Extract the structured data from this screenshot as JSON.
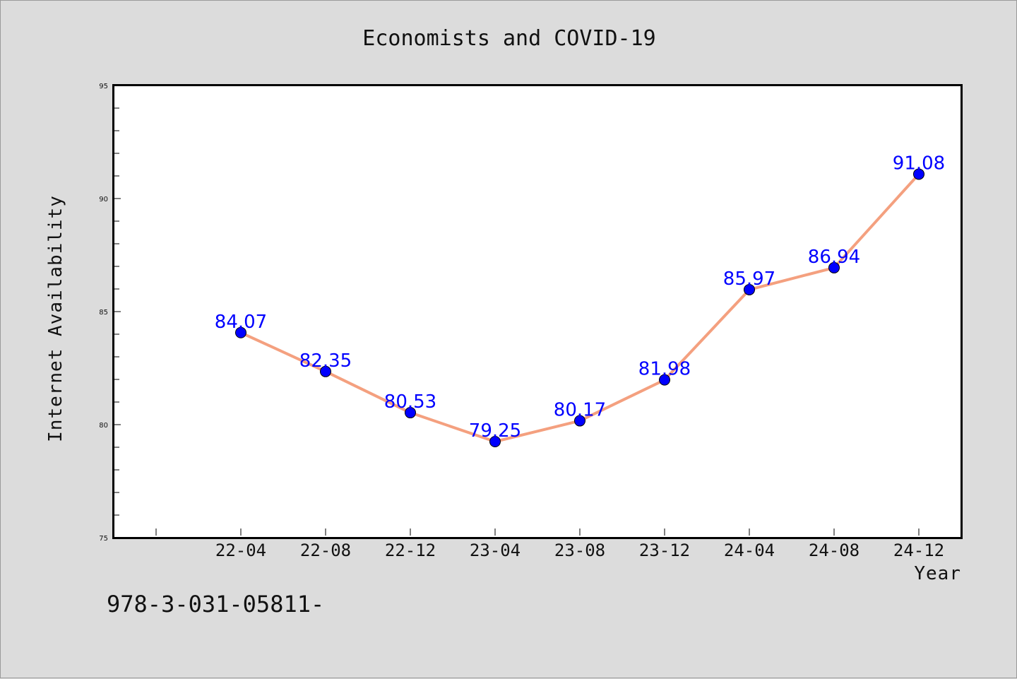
{
  "chart_data": {
    "type": "line",
    "title": "Economists and COVID-19",
    "xlabel": "Year",
    "ylabel": "Internet Availability",
    "categories": [
      "22-04",
      "22-08",
      "22-12",
      "23-04",
      "23-08",
      "23-12",
      "24-04",
      "24-08",
      "24-12"
    ],
    "series": [
      {
        "values": [
          84.07,
          82.35,
          80.53,
          79.25,
          80.17,
          81.98,
          85.97,
          86.94,
          91.08
        ]
      }
    ],
    "data_labels": [
      "84.07",
      "82.35",
      "80.53",
      "79.25",
      "80.17",
      "81.98",
      "85.97",
      "86.94",
      "91.08"
    ],
    "ylim": [
      75,
      95
    ],
    "y_ticks": [
      "75",
      "80",
      "85",
      "90",
      "95"
    ],
    "grid": false,
    "colors": {
      "line": "#f4a07f",
      "marker": "#0000ff",
      "label": "#0000ff",
      "background": "#dcdcdc",
      "plot_bg": "#ffffff"
    }
  },
  "footer": {
    "text": "978-3-031-05811-"
  }
}
